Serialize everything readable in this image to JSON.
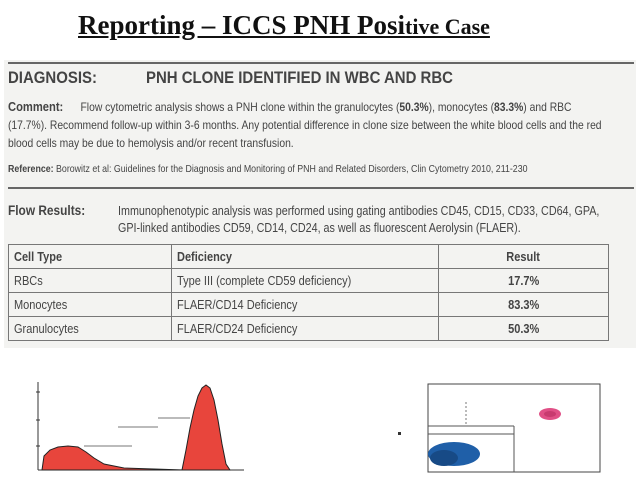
{
  "slide": {
    "title_main": "Reporting – ICCS PNH Posi",
    "title_small": "tive Case"
  },
  "report": {
    "diagnosis_label": "DIAGNOSIS:",
    "diagnosis_value": "PNH CLONE IDENTIFIED IN WBC AND RBC",
    "comment_label": "Comment:",
    "comment_part1": "Flow cytometric analysis shows a PNH clone within the granulocytes (",
    "comment_gran": "50.3%",
    "comment_part2": "), monocytes (",
    "comment_mono": "83.3%",
    "comment_part3": ") and RBC (17.7%). Recommend follow-up within 3-6 months. Any potential difference in clone size between the white blood cells and the red blood cells may be due to hemolysis and/or recent transfusion.",
    "reference_label": "Reference:",
    "reference_text": "Borowitz et al: Guidelines for the Diagnosis and Monitoring of PNH and Related Disorders, Clin Cytometry 2010, 211-230",
    "flow_label": "Flow Results:",
    "flow_text": "Immunophenotypic analysis was performed using gating antibodies CD45, CD15, CD33, CD64, GPA, GPI-linked antibodies CD59, CD14, CD24, as well as fluorescent Aerolysin (FLAER)."
  },
  "table": {
    "headers": [
      "Cell Type",
      "Deficiency",
      "Result"
    ],
    "rows": [
      [
        "RBCs",
        "Type III (complete CD59 deficiency)",
        "17.7%"
      ],
      [
        "Monocytes",
        "FLAER/CD14 Deficiency",
        "83.3%"
      ],
      [
        "Granulocytes",
        "FLAER/CD24 Deficiency",
        "50.3%"
      ]
    ]
  },
  "colors": {
    "histogram_fill": "#e8453c",
    "scatter_negative": "#1f5fa8",
    "scatter_positive": "#e04f86"
  }
}
